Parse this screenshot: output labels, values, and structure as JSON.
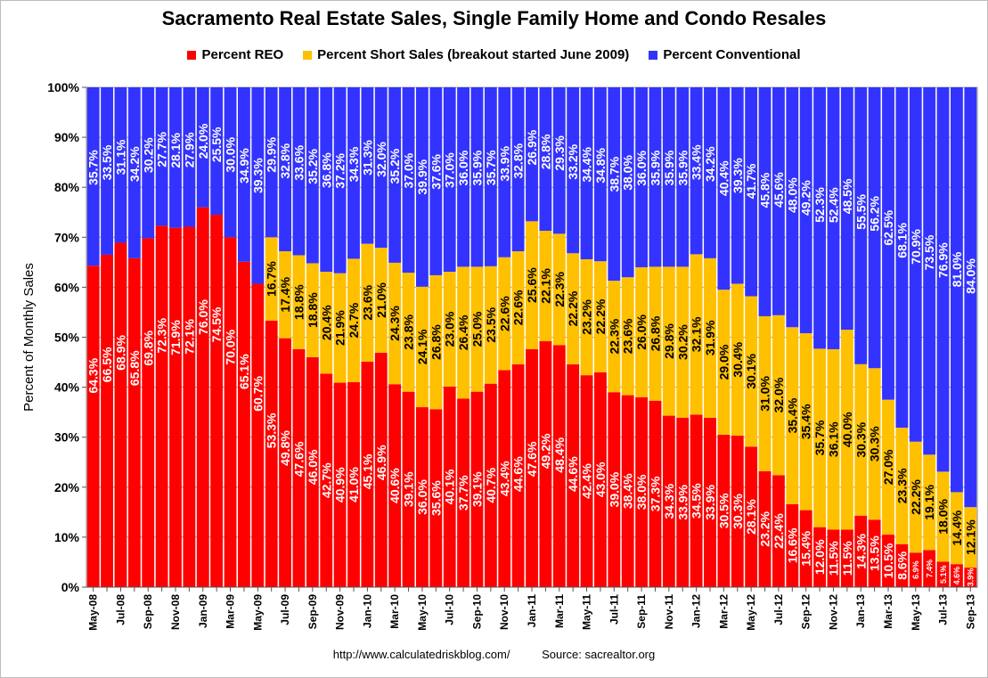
{
  "chart_data": {
    "type": "bar",
    "stacked": true,
    "title": "Sacramento Real Estate Sales, Single Family Home and Condo Resales",
    "ylabel": "Percent of Monthly Sales",
    "xlabel": "",
    "ylim": [
      0,
      100
    ],
    "yticks": [
      "0%",
      "10%",
      "20%",
      "30%",
      "40%",
      "50%",
      "60%",
      "70%",
      "80%",
      "90%",
      "100%"
    ],
    "grid": true,
    "legend_position": "top",
    "categories": [
      "May-08",
      "Jun-08",
      "Jul-08",
      "Aug-08",
      "Sep-08",
      "Oct-08",
      "Nov-08",
      "Dec-08",
      "Jan-09",
      "Feb-09",
      "Mar-09",
      "Apr-09",
      "May-09",
      "Jun-09",
      "Jul-09",
      "Aug-09",
      "Sep-09",
      "Oct-09",
      "Nov-09",
      "Dec-09",
      "Jan-10",
      "Feb-10",
      "Mar-10",
      "Apr-10",
      "May-10",
      "Jun-10",
      "Jul-10",
      "Aug-10",
      "Sep-10",
      "Oct-10",
      "Nov-10",
      "Dec-10",
      "Jan-11",
      "Feb-11",
      "Mar-11",
      "Apr-11",
      "May-11",
      "Jun-11",
      "Jul-11",
      "Aug-11",
      "Sep-11",
      "Oct-11",
      "Nov-11",
      "Dec-11",
      "Jan-12",
      "Feb-12",
      "Mar-12",
      "Apr-12",
      "May-12",
      "Jun-12",
      "Jul-12",
      "Aug-12",
      "Sep-12",
      "Oct-12",
      "Nov-12",
      "Dec-12",
      "Jan-13",
      "Feb-13",
      "Mar-13",
      "Apr-13",
      "May-13",
      "Jun-13",
      "Jul-13",
      "Aug-13",
      "Sep-13"
    ],
    "xtick_labels": [
      "May-08",
      "",
      "Jul-08",
      "",
      "Sep-08",
      "",
      "Nov-08",
      "",
      "Jan-09",
      "",
      "Mar-09",
      "",
      "May-09",
      "",
      "Jul-09",
      "",
      "Sep-09",
      "",
      "Nov-09",
      "",
      "Jan-10",
      "",
      "Mar-10",
      "",
      "May-10",
      "",
      "Jul-10",
      "",
      "Sep-10",
      "",
      "Nov-10",
      "",
      "Jan-11",
      "",
      "Mar-11",
      "",
      "May-11",
      "",
      "Jul-11",
      "",
      "Sep-11",
      "",
      "Nov-11",
      "",
      "Jan-12",
      "",
      "Mar-12",
      "",
      "May-12",
      "",
      "Jul-12",
      "",
      "Sep-12",
      "",
      "Nov-12",
      "",
      "Jan-13",
      "",
      "Mar-13",
      "",
      "May-13",
      "",
      "Jul-13",
      "",
      "Sep-13"
    ],
    "series": [
      {
        "name": "Percent REO",
        "color": "#ff0000",
        "values": [
          64.3,
          66.5,
          68.9,
          65.8,
          69.8,
          72.3,
          71.9,
          72.1,
          76.0,
          74.5,
          70.0,
          65.1,
          60.7,
          53.3,
          49.8,
          47.6,
          46.0,
          42.7,
          40.9,
          41.0,
          45.1,
          46.9,
          40.6,
          39.1,
          36.0,
          35.6,
          40.1,
          37.7,
          39.1,
          40.7,
          43.4,
          44.6,
          47.6,
          49.2,
          48.4,
          44.6,
          42.4,
          43.0,
          39.0,
          38.4,
          38.0,
          37.3,
          34.3,
          33.9,
          34.5,
          33.9,
          30.5,
          30.3,
          28.1,
          23.2,
          22.4,
          16.6,
          15.4,
          12.0,
          11.5,
          11.5,
          14.3,
          13.5,
          10.5,
          8.6,
          6.9,
          7.4,
          5.1,
          4.6,
          3.9
        ],
        "labels": [
          "64.3%",
          "66.5%",
          "68.9%",
          "65.8%",
          "69.8%",
          "72.3%",
          "71.9%",
          "72.1%",
          "76.0%",
          "74.5%",
          "70.0%",
          "65.1%",
          "60.7%",
          "53.3%",
          "49.8%",
          "47.6%",
          "46.0%",
          "42.7%",
          "40.9%",
          "41.0%",
          "45.1%",
          "46.9%",
          "40.6%",
          "39.1%",
          "36.0%",
          "35.6%",
          "40.1%",
          "37.7%",
          "39.1%",
          "40.7%",
          "43.4%",
          "44.6%",
          "47.6%",
          "49.2%",
          "48.4%",
          "44.6%",
          "42.4%",
          "43.0%",
          "39.0%",
          "38.4%",
          "38.0%",
          "37.3%",
          "34.3%",
          "33.9%",
          "34.5%",
          "33.9%",
          "30.5%",
          "30.3%",
          "28.1%",
          "23.2%",
          "22.4%",
          "16.6%",
          "15.4%",
          "12.0%",
          "11.5%",
          "11.5%",
          "14.3%",
          "13.5%",
          "10.5%",
          "8.6%",
          "6.9%",
          "7.4%",
          "5.1%",
          "4.6%",
          "3.9%"
        ]
      },
      {
        "name": "Percent Short Sales (breakout started June 2009)",
        "color": "#ffc000",
        "values": [
          0,
          0,
          0,
          0,
          0,
          0,
          0,
          0,
          0,
          0,
          0,
          0,
          0,
          16.7,
          17.4,
          18.8,
          18.8,
          20.4,
          21.9,
          24.7,
          23.6,
          21.0,
          24.3,
          23.8,
          24.1,
          26.8,
          23.0,
          26.4,
          25.0,
          23.5,
          22.6,
          22.6,
          25.6,
          22.1,
          22.3,
          22.2,
          23.2,
          22.2,
          22.3,
          23.6,
          26.0,
          26.8,
          29.8,
          30.2,
          32.1,
          31.9,
          29.0,
          30.4,
          30.1,
          31.0,
          32.0,
          35.4,
          35.4,
          35.7,
          36.1,
          40.0,
          30.3,
          30.3,
          27.0,
          23.3,
          22.2,
          19.1,
          18.0,
          14.4,
          12.1
        ],
        "labels": [
          "",
          "",
          "",
          "",
          "",
          "",
          "",
          "",
          "",
          "",
          "",
          "",
          "",
          "16.7%",
          "17.4%",
          "18.8%",
          "18.8%",
          "20.4%",
          "21.9%",
          "24.7%",
          "23.6%",
          "21.0%",
          "24.3%",
          "23.8%",
          "24.1%",
          "26.8%",
          "23.0%",
          "26.4%",
          "25.0%",
          "23.5%",
          "22.6%",
          "22.6%",
          "25.6%",
          "22.1%",
          "22.3%",
          "22.2%",
          "23.2%",
          "22.2%",
          "22.3%",
          "23.6%",
          "26.0%",
          "26.8%",
          "29.8%",
          "30.2%",
          "32.1%",
          "31.9%",
          "29.0%",
          "30.4%",
          "30.1%",
          "31.0%",
          "32.0%",
          "35.4%",
          "35.4%",
          "35.7%",
          "36.1%",
          "40.0%",
          "30.3%",
          "30.3%",
          "27.0%",
          "23.3%",
          "22.2%",
          "19.1%",
          "18.0%",
          "14.4%",
          "12.1%"
        ]
      },
      {
        "name": "Percent Conventional",
        "color": "#3333ff",
        "values": [
          35.7,
          33.5,
          31.1,
          34.2,
          30.2,
          27.7,
          28.1,
          27.9,
          24.0,
          25.5,
          30.0,
          34.9,
          39.3,
          29.9,
          32.8,
          33.6,
          35.2,
          36.8,
          37.2,
          34.3,
          31.3,
          32.0,
          35.2,
          37.0,
          39.9,
          37.6,
          37.0,
          36.0,
          35.9,
          35.7,
          33.9,
          32.8,
          26.9,
          28.8,
          29.3,
          33.2,
          34.4,
          34.8,
          38.7,
          38.0,
          36.0,
          35.9,
          35.9,
          35.9,
          33.4,
          34.2,
          40.4,
          39.3,
          41.7,
          45.8,
          45.6,
          48.0,
          49.2,
          52.3,
          52.4,
          48.5,
          55.5,
          56.2,
          62.5,
          68.1,
          70.9,
          73.5,
          76.9,
          81.0,
          84.0
        ],
        "labels": [
          "35.7%",
          "33.5%",
          "31.1%",
          "34.2%",
          "30.2%",
          "27.7%",
          "28.1%",
          "27.9%",
          "24.0%",
          "25.5%",
          "30.0%",
          "34.9%",
          "39.3%",
          "29.9%",
          "32.8%",
          "33.6%",
          "35.2%",
          "36.8%",
          "37.2%",
          "34.3%",
          "31.3%",
          "32.0%",
          "35.2%",
          "37.0%",
          "39.9%",
          "37.6%",
          "37.0%",
          "36.0%",
          "35.9%",
          "35.7%",
          "33.9%",
          "32.8%",
          "26.9%",
          "28.8%",
          "29.3%",
          "33.2%",
          "34.4%",
          "34.8%",
          "38.7%",
          "38.0%",
          "36.0%",
          "35.9%",
          "35.9%",
          "35.9%",
          "33.4%",
          "34.2%",
          "40.4%",
          "39.3%",
          "41.7%",
          "45.8%",
          "45.6%",
          "48.0%",
          "49.2%",
          "52.3%",
          "52.4%",
          "48.5%",
          "55.5%",
          "56.2%",
          "62.5%",
          "68.1%",
          "70.9%",
          "73.5%",
          "76.9%",
          "81.0%",
          "84.0%"
        ]
      }
    ]
  },
  "footer": {
    "url": "http://www.calculatedriskblog.com/",
    "source": "Source:  sacrealtor.org"
  }
}
